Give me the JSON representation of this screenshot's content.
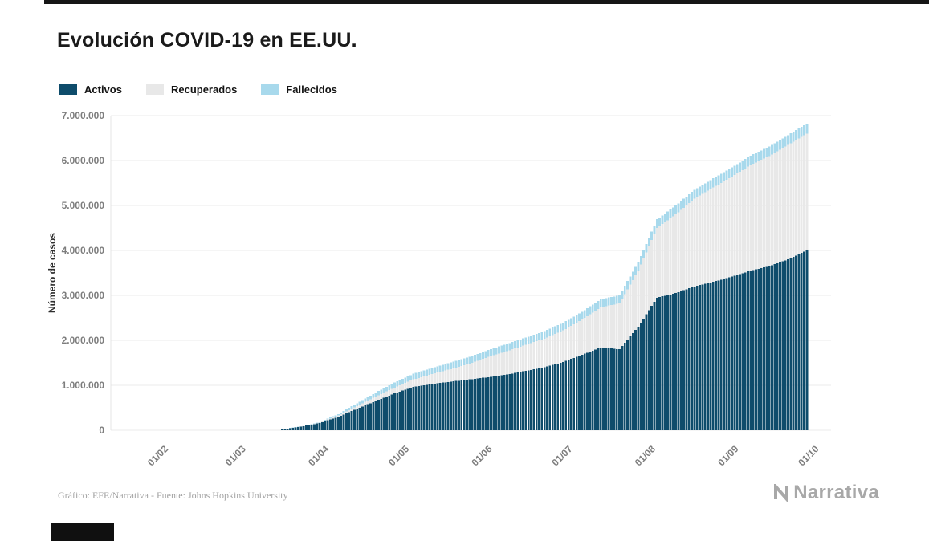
{
  "title": "Evolución COVID-19 en EE.UU.",
  "footer": {
    "credit": "Gráfico: EFE/Narrativa - Fuente: Johns Hopkins University"
  },
  "brand": {
    "name": "Narrativa"
  },
  "chart_data": {
    "type": "area",
    "stacked": true,
    "title": "Evolución COVID-19 en EE.UU.",
    "xlabel": "",
    "ylabel": "Número de casos",
    "ylim": [
      0,
      7000000
    ],
    "grid": "horizontal",
    "legend_position": "top-left",
    "x_tick_labels": [
      "01/02",
      "01/03",
      "01/04",
      "01/05",
      "01/06",
      "01/07",
      "01/08",
      "01/09",
      "01/10"
    ],
    "x_tick_days": [
      0,
      29,
      60,
      90,
      121,
      151,
      182,
      213,
      243
    ],
    "y_tick_labels": [
      "0",
      "1.000.000",
      "2.000.000",
      "3.000.000",
      "4.000.000",
      "5.000.000",
      "6.000.000",
      "7.000.000"
    ],
    "x_dates": [
      "15/03",
      "22/03",
      "29/03",
      "05/04",
      "12/04",
      "19/04",
      "26/04",
      "03/05",
      "10/05",
      "17/05",
      "24/05",
      "31/05",
      "07/06",
      "14/06",
      "21/06",
      "28/06",
      "05/07",
      "12/07",
      "19/07",
      "26/07",
      "02/08",
      "09/08",
      "16/08",
      "23/08",
      "30/08",
      "06/09",
      "13/09",
      "20/09",
      "27/09"
    ],
    "x_days_since_feb1": [
      43,
      50,
      57,
      64,
      71,
      78,
      85,
      92,
      99,
      106,
      113,
      120,
      127,
      134,
      141,
      148,
      155,
      162,
      169,
      176,
      183,
      190,
      197,
      204,
      211,
      218,
      225,
      232,
      239
    ],
    "series": [
      {
        "name": "Activos",
        "color": "#0e4c6b",
        "values": [
          20000,
          80000,
          160000,
          300000,
          480000,
          650000,
          820000,
          960000,
          1030000,
          1080000,
          1130000,
          1180000,
          1240000,
          1320000,
          1400000,
          1520000,
          1680000,
          1840000,
          1800000,
          2300000,
          2950000,
          3050000,
          3200000,
          3300000,
          3420000,
          3550000,
          3650000,
          3800000,
          4000000
        ]
      },
      {
        "name": "Recuperados",
        "color": "#e8e8e8",
        "values": [
          0,
          5000,
          10000,
          30000,
          60000,
          100000,
          130000,
          170000,
          220000,
          280000,
          350000,
          450000,
          520000,
          580000,
          640000,
          700000,
          780000,
          900000,
          1020000,
          1250000,
          1550000,
          1750000,
          1950000,
          2100000,
          2220000,
          2350000,
          2450000,
          2550000,
          2600000
        ]
      },
      {
        "name": "Fallecidos",
        "color": "#a8d9ec",
        "values": [
          1000,
          3000,
          10000,
          30000,
          60000,
          90000,
          110000,
          125000,
          135000,
          145000,
          150000,
          155000,
          160000,
          163000,
          166000,
          170000,
          173000,
          177000,
          182000,
          188000,
          193000,
          197000,
          200000,
          203000,
          206000,
          210000,
          213000,
          217000,
          220000
        ]
      }
    ],
    "axis_colors": {
      "tick_label": "#7d7d7d",
      "grid": "#ebebeb",
      "axis_title": "#2e2e2e"
    }
  }
}
